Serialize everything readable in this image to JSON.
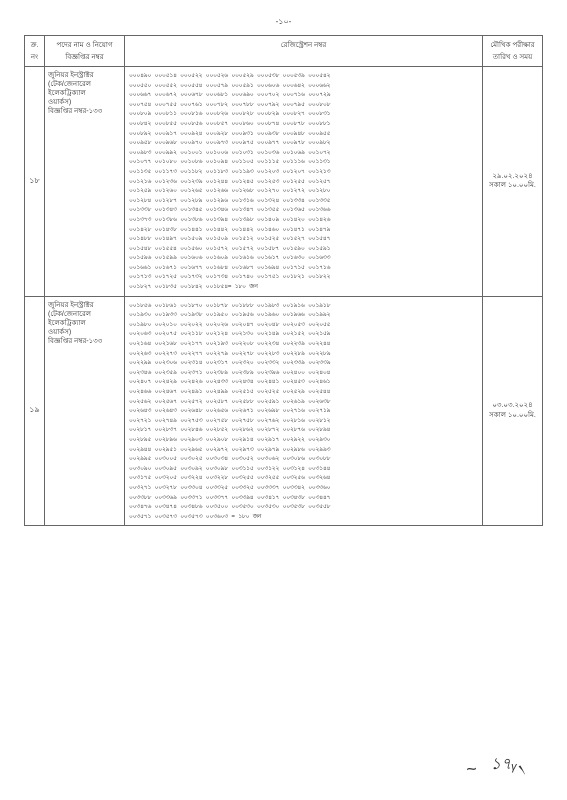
{
  "page_number": "-১০-",
  "headers": {
    "sn": "ক্র.\nনং",
    "post": "পদের নাম ও নিয়োগ\nবিজ্ঞপ্তির নম্বর",
    "reg": "রেজিস্ট্রেশন নম্বর",
    "date": "মৌখিক পরীক্ষার\nতারিখ ও সময়"
  },
  "rows": [
    {
      "sn": "১৮",
      "post": "জুনিয়র ইনস্ট্রাক্টর\n(টেক/জেনারেল\nইলেকট্রিক্যাল\nওয়ার্কস)\nবিজ্ঞপ্তির নম্বর-১৩৩",
      "date": "২৯.০২.২০২৪\nসকাল ১০.০০মি.",
      "reg_lines": [
        "০০০৪৯০  ০০০৫১৪  ০০০৫২২  ০০০৫২৬  ০০০৫২৯  ০০০৫৩৮  ০০০৫৩৯  ০০০৫৪২",
        "০০০৫৫০  ০০০৫৫২  ০০০৫৫৪  ০০০৫৭৯  ০০০৫৯১  ০০০৬০৬  ০০০৬৪২  ০০০৬৬২",
        "০০০৬৬৭  ০০০৬৭২  ০০০৬৭৮  ০০০৬৮১  ০০০৬৯০  ০০০৭০২  ০০০৭১৬  ০০০৭২৯",
        "০০০৭৫৪  ০০০৭৫৫  ০০০৭৬১  ০০০৭৮২  ০০০৭৮৮  ০০০৭৯২  ০০০৭৯৫  ০০০৮০৮",
        "০০০৮০৯  ০০০৮১১  ০০০৮১৬  ০০০৮২৬  ০০০৮২৮  ০০০৮২৯  ০০০৮২৭  ০০০৮৩১",
        "০০০৮৪২  ০০০৮৫৫  ০০০৮৫৬  ০০০৮৫৭  ০০০৮৬০  ০০০৮৭৪  ০০০৮৭৮  ০০০৮৮১",
        "০০০৮৯২  ০০০৯১৭  ০০০৯২৪  ০০০৯২৮  ০০০৯৩১  ০০০৯৩৮  ০০০৯৪৮  ০০০৯৫৫",
        "০০০৯৫৮  ০০০৯৬৮  ০০০৯৭০  ০০০৯৭৩  ০০০৯৭৫  ০০০৯৭৭  ০০০৯৭৮  ০০০৯৮২",
        "০০০৯৮৩  ০০০৯৯২  ০০১০০১  ০০১০০৬  ০০১০৩১  ০০১০৩৬  ০০১০৬৯  ০০১০৭২",
        "০০১০৭৭  ০০১০৮০  ০০১০৮৬  ০০১০৯৪  ০০১১০৫  ০০১১১৫  ০০১১১৬  ০০১১৩১",
        "০০১১৩৫  ০০১১৭৩  ০০১১৮২  ০০১১৮৩  ০০১১৯৩  ০০১২০৩  ০০১২০৭  ০০১২১৩",
        "০০১২১৬  ০০১২৩৬  ০০১২৩৯  ০০১২৪৪  ০০১২৪৫  ০০১২৫৩  ০০১২৫৫  ০০১২৫৭",
        "০০১২৫৯  ০০১২৬০  ০০১২৬৫  ০০১২৬৬  ০০১২৬৮  ০০১২৭০  ০০১২৭২  ০০১২৮০",
        "০০১২৮৪  ০০১২৮৭  ০০১২৮৯  ০০১২৯৬  ০০১৩১৬  ০০১৩২৪  ০০১৩৩৪  ০০১৩৩৫",
        "০০১৩৩৮  ০০১৩৪৩  ০০১৩৪৫  ০০১৩৪৬  ০০১৩৪৭  ০০১৩৫৫  ০০১৩৬৫  ০০১৩৬৬",
        "০০১৩৭৩  ০০১৩৮৬  ০০১৩৮৬  ০০১৩৯৪  ০০১৩৯৮  ০০১৪০৯  ০০১৪২০  ০০১৪২৬",
        "০০১৪২৮  ০০১৪৩৮  ০০১৪৪১  ০০১৪৪২  ০০১৪৪২  ০০১৪৬০  ০০১৪৭১  ০০১৪৭৯",
        "০০১৪৮৮  ০০১৪৯৭  ০০১৫০৯  ০০১৫০৯  ০০১৫১২  ০০১৫২৫  ০০১৫২৭  ০০১৫৪৭",
        "০০১৫৪৮  ০০১৫৫৪  ০০১৫৬০  ০০১৫৭২  ০০১৫৭২  ০০১৫৮৭  ০০১৫৯০  ০০১৫৯১",
        "০০১৫৯৬  ০০১৫৯৯  ০০১৬০৬  ০০১৬০৯  ০০১৬১৬  ০০১৬১৭  ০০১৬৩০  ০০১৬৩৩",
        "০০১৬৬১  ০০১৬৭১  ০০১৬৭৭  ০০১৬৮৪  ০০১৬৮৭  ০০১৬৯৪  ০০১৭১৫  ০০১৭১৬",
        "০০১৭১৩  ০০১৭২৫  ০০১৭৩২  ০০১৭৩৪  ০০১৭৪০  ০০১৭৫১  ০০১৮২১  ০০১৮২২",
        "০০১৮২৭  ০০১৮৩৫  ০০১৮৪২  ০০১৮৫৪= ১৮০ জন"
      ]
    },
    {
      "sn": "১৯",
      "post": "জুনিয়র ইনস্ট্রাক্টর\n(টেক/জেনারেল\nইলেকট্রিক্যাল\nওয়ার্কস)\nবিজ্ঞপ্তির নম্বর-১৩৩",
      "date": "০৩.০৩.২০২৪\nসকাল ১০.০০মি.",
      "reg_lines": [
        "০০১৮৫৬  ০০১৮৬১  ০০১৮৭০  ০০১৮৭৮  ০০১৮৮৮  ০০১৯৮৩  ০০১৯১৬  ০০১৯১৮",
        "০০১৯৩০  ০০১৯৩৩  ০০১৯৩৮  ০০১৯৫০  ০০১৯৫৬  ০০১৯৬০  ০০১৯৬৬  ০০১৯৯২",
        "০০১৯৮০  ০০২০১০  ০০২০২২  ০০২০২৬  ০০২০৪৭  ০০২০৪৮  ০০২০৫৩  ০০২০৫৫",
        "০০২০৬৩  ০০২০৭৫  ০০২১১৮  ০০২১২৪  ০০২১৩০  ০০২১৪৯  ০০২১৫২  ০০২১৫৯",
        "০০২১৬৪  ০০২১৬৮  ০০২১৭৭  ০০২১৯৩  ০০২২০৮  ০০২২৩৪  ০০২২৩৯  ০০২২৪৪",
        "০০২২৬৩  ০০২২৭৩  ০০২২৭৭  ০০২২৭৯  ০০২২৭৮  ০০২২৮৩  ০০২২৮৯  ০০২২৮৯",
        "০০২২৯৯  ০০২৩০৬  ০০২৩১৪  ০০২৩১৭  ০০২৩২০  ০০২৩৩২  ০০২৩৩৯  ০০২৩৩৯",
        "০০২৩৪৬  ০০২৩৫৯  ০০২৩৭১  ০০২৩৮৯  ০০২৩৮৯  ০০২৩৯৬  ০০২৪০০  ০০২৪০৪",
        "০০২৪০৭  ০০২৪২৯  ০০২৪২৬  ০০২৪৩৩  ০০২৪৩৪  ০০২৪৪১  ০০২৪৫৩  ০০২৪৬১",
        "০০২৪৬৬  ০০২৪৬৭  ০০২৪৯১  ০০২৪৯৯  ০০২৫১৫  ০০২৫২৫  ০০২৫২৯  ০০২৫৪৪",
        "০০২৫৬২  ০০২৫৬৭  ০০২৫৭২  ০০২৫৮৭  ০০২৫৮৮  ০০২৫৯১  ০০২৬১৯  ০০২৬৩৮",
        "০০২৬৪৩  ০০২৬৪৩  ০০২৬৪৮  ০০২৬৫৬  ০০২৬৭১  ০০২৬৯৮  ০০২৭১৬  ০০২৭১৯",
        "০০২৭২১  ০০২৭৪৯  ০০২৭৫৩  ০০২৭৫৮  ০০২৭৫৮  ০০২৭৬২  ০০২৮১৬  ০০২৮১২",
        "০০২৮১৭  ০০২৮৩৭  ০০২৮৪৬  ০০২৮৫২  ০০২৮৬২  ০০২৮৭২  ০০২৮৭৬  ০০২৮৯৪",
        "০০২৮৯৫  ০০২৮৯৬  ০০২৯০৩  ০০২৯০৮  ০০২৯১৪  ০০২৯১৭  ০০২৯২২  ০০২৯৩০",
        "০০২৯৪৪  ০০২৯৫১  ০০২৯৬৫  ০০২৯৭২  ০০২৯৭৩  ০০২৯৭৯  ০০২৯৮৬  ০০২৯৯৩",
        "০০২৯৯৫  ০০৩০০৫  ০০৩০২৫  ০০৩০৩৪  ০০৩০৫২  ০০৩০৬২  ০০৩০৮৬  ০০৩০৮৮",
        "০০৩০৯০  ০০৩০৯৫  ০০৩০৯২  ০০৩০৯৮  ০০৩১১৫  ০০৩১২২  ০০৩১২৪  ০০৩১৪৪",
        "০০৩১৭৫  ০০৩২০৫  ০০৩২২৪  ০০৩২২৮  ০০৩২৫৫  ০০৩২৫৫  ০০৩২৫৬  ০০৩২৬৪",
        "০০৩২৭১  ০০৩২৭৮  ০০৩৩০৪  ০০৩৩২৫  ০০৩৩২৫  ০০৩৩৩৭  ০০৩৩৪২  ০০৩৩৬০",
        "০০৩৩৮৮  ০০৩৩৬৯  ০০৩৩৭১  ০০৩৩৭৭  ০০৩৩৯৪  ০০৩৪১৭  ০০৩৪৩৮  ০০৩৪৪৭",
        "০০৩৪৭৬  ০০৩৪৭৪  ০০৩৪৮৬  ০০৩৫০০  ০০৩৫৩০  ০০৩৫৩০  ০০৩৫৩৮  ০০৩৫৫৮",
        "০০৩৫৭১  ০০৩৫৭৩  ০০৩৫৭৩  ০০৩৬০৩ = ১৮০ জন"
      ]
    }
  ],
  "signature1": "~",
  "signature2": "১৭ᵧ৲"
}
